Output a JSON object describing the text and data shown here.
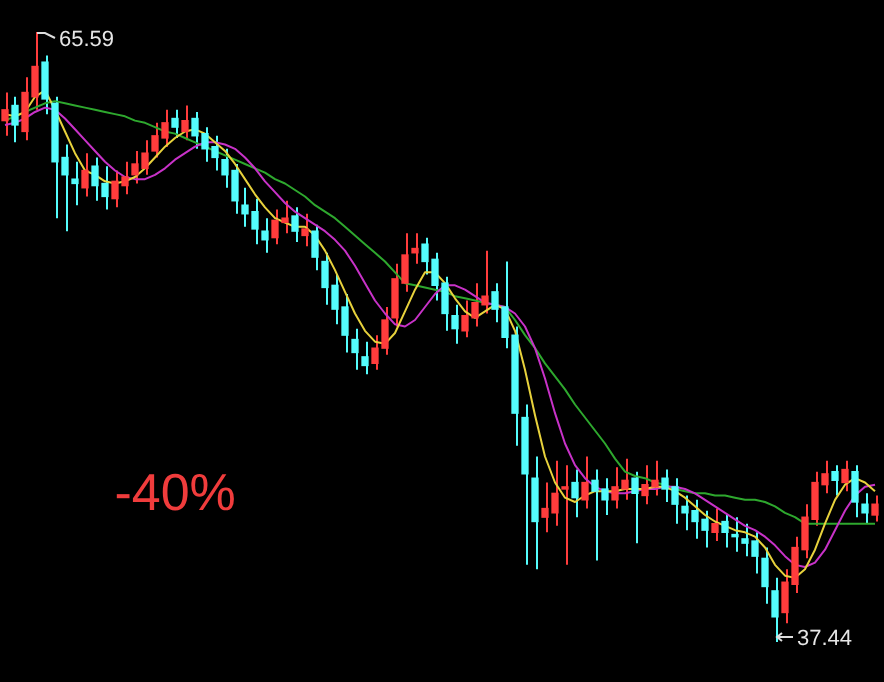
{
  "chart_data": {
    "type": "candlestick",
    "marker": "none",
    "categories": [
      null,
      null,
      null,
      null,
      null,
      null,
      null,
      null,
      null,
      null,
      null,
      null,
      null,
      null,
      null,
      null,
      null,
      null,
      null,
      null,
      null,
      null,
      null,
      null,
      null,
      null,
      null,
      null,
      null,
      null,
      null,
      null,
      null,
      null,
      null,
      null,
      null,
      null,
      null,
      null,
      null,
      null,
      null,
      null,
      null,
      null,
      null,
      null,
      null,
      null,
      null,
      null,
      null,
      null,
      null,
      null,
      null,
      null,
      null,
      null,
      null,
      null,
      null,
      null,
      null,
      null,
      null,
      null,
      null,
      null,
      null,
      null,
      null,
      null,
      null,
      null,
      null,
      null,
      null,
      null,
      null,
      null,
      null,
      null,
      null,
      null,
      null,
      null
    ],
    "ohlc": [
      [
        61.5,
        62.8,
        60.8,
        62.0
      ],
      [
        62.2,
        62.6,
        60.5,
        61.3
      ],
      [
        61.0,
        63.5,
        60.6,
        62.8
      ],
      [
        62.6,
        65.59,
        62.0,
        64.0
      ],
      [
        64.2,
        64.5,
        61.8,
        62.5
      ],
      [
        62.3,
        62.6,
        57.0,
        59.6
      ],
      [
        59.8,
        60.4,
        56.4,
        59.0
      ],
      [
        58.8,
        59.6,
        57.6,
        58.6
      ],
      [
        58.4,
        60.0,
        58.0,
        59.2
      ],
      [
        59.4,
        59.8,
        57.8,
        58.5
      ],
      [
        58.6,
        59.4,
        57.4,
        58.0
      ],
      [
        57.9,
        59.2,
        57.5,
        58.7
      ],
      [
        58.5,
        59.6,
        58.1,
        58.9
      ],
      [
        59.0,
        60.1,
        58.6,
        59.5
      ],
      [
        59.3,
        60.6,
        59.0,
        60.0
      ],
      [
        60.1,
        61.4,
        59.8,
        60.8
      ],
      [
        60.7,
        62.0,
        60.3,
        61.4
      ],
      [
        61.6,
        62.0,
        60.7,
        61.2
      ],
      [
        61.0,
        62.2,
        60.6,
        61.5
      ],
      [
        61.6,
        61.9,
        60.2,
        60.8
      ],
      [
        60.9,
        61.2,
        59.6,
        60.2
      ],
      [
        60.3,
        60.8,
        59.2,
        59.8
      ],
      [
        59.7,
        60.2,
        58.4,
        59.0
      ],
      [
        59.2,
        59.5,
        57.2,
        57.8
      ],
      [
        57.6,
        58.4,
        56.6,
        57.2
      ],
      [
        57.3,
        57.9,
        55.8,
        56.5
      ],
      [
        56.4,
        57.0,
        55.4,
        56.0
      ],
      [
        56.1,
        57.4,
        55.8,
        56.9
      ],
      [
        56.8,
        57.8,
        56.3,
        57.0
      ],
      [
        57.1,
        57.5,
        55.9,
        56.4
      ],
      [
        56.2,
        57.2,
        55.7,
        56.5
      ],
      [
        56.4,
        56.7,
        54.6,
        55.2
      ],
      [
        55.0,
        55.4,
        53.0,
        53.8
      ],
      [
        53.9,
        54.4,
        52.1,
        52.8
      ],
      [
        52.9,
        53.5,
        50.8,
        51.6
      ],
      [
        51.4,
        51.9,
        50.0,
        50.8
      ],
      [
        50.6,
        51.3,
        49.8,
        50.2
      ],
      [
        50.3,
        51.6,
        50.0,
        51.0
      ],
      [
        51.0,
        52.9,
        50.7,
        52.3
      ],
      [
        52.4,
        54.9,
        52.0,
        54.2
      ],
      [
        54.0,
        56.3,
        53.6,
        55.3
      ],
      [
        55.4,
        56.3,
        54.9,
        55.6
      ],
      [
        55.8,
        56.1,
        54.4,
        55.0
      ],
      [
        55.1,
        55.4,
        53.2,
        53.9
      ],
      [
        54.0,
        54.3,
        51.8,
        52.6
      ],
      [
        52.5,
        53.0,
        51.2,
        51.9
      ],
      [
        51.8,
        53.2,
        51.5,
        52.5
      ],
      [
        52.4,
        54.0,
        52.0,
        53.1
      ],
      [
        53.0,
        55.5,
        52.6,
        53.4
      ],
      [
        53.6,
        54.0,
        52.2,
        52.8
      ],
      [
        52.9,
        55.0,
        51.0,
        51.5
      ],
      [
        51.6,
        52.0,
        46.5,
        48.0
      ],
      [
        47.8,
        48.4,
        41.0,
        45.2
      ],
      [
        45.0,
        46.0,
        40.8,
        43.0
      ],
      [
        43.2,
        44.8,
        42.5,
        43.6
      ],
      [
        43.4,
        45.8,
        42.8,
        44.3
      ],
      [
        44.5,
        45.6,
        41.0,
        44.6
      ],
      [
        44.8,
        45.4,
        43.2,
        44.1
      ],
      [
        44.0,
        46.0,
        43.6,
        44.8
      ],
      [
        44.9,
        45.4,
        41.2,
        44.4
      ],
      [
        44.5,
        45.0,
        43.3,
        44.0
      ],
      [
        44.0,
        45.5,
        43.6,
        44.6
      ],
      [
        44.5,
        45.9,
        44.0,
        44.9
      ],
      [
        45.0,
        45.3,
        42.0,
        44.3
      ],
      [
        44.2,
        45.6,
        43.8,
        44.7
      ],
      [
        44.6,
        45.8,
        44.2,
        44.9
      ],
      [
        45.0,
        45.4,
        43.9,
        44.5
      ],
      [
        44.6,
        45.0,
        42.9,
        43.8
      ],
      [
        43.7,
        44.2,
        42.6,
        43.4
      ],
      [
        43.5,
        44.0,
        42.2,
        43.0
      ],
      [
        43.1,
        43.5,
        41.8,
        42.6
      ],
      [
        42.5,
        43.6,
        42.1,
        42.9
      ],
      [
        43.0,
        43.3,
        41.8,
        42.5
      ],
      [
        42.4,
        43.2,
        41.6,
        42.3
      ],
      [
        42.2,
        42.9,
        41.4,
        42.0
      ],
      [
        42.1,
        42.5,
        40.6,
        41.4
      ],
      [
        41.3,
        41.8,
        39.2,
        40.0
      ],
      [
        39.8,
        40.4,
        37.44,
        38.6
      ],
      [
        38.8,
        40.8,
        38.3,
        40.2
      ],
      [
        40.1,
        42.3,
        39.7,
        41.8
      ],
      [
        41.7,
        43.8,
        41.3,
        43.2
      ],
      [
        43.1,
        45.3,
        42.8,
        44.8
      ],
      [
        44.7,
        45.8,
        44.3,
        45.2
      ],
      [
        45.3,
        45.6,
        44.2,
        44.9
      ],
      [
        44.8,
        45.8,
        44.4,
        45.4
      ],
      [
        45.3,
        45.6,
        43.2,
        43.9
      ],
      [
        43.8,
        44.3,
        42.9,
        43.4
      ],
      [
        43.3,
        44.2,
        43.0,
        43.8
      ]
    ],
    "colors": [
      "#ff3c3c",
      "#54fcfc",
      "#ff3c3c",
      "#ff3c3c",
      "#54fcfc",
      "#54fcfc",
      "#54fcfc",
      "#54fcfc",
      "#ff3c3c",
      "#54fcfc",
      "#54fcfc",
      "#ff3c3c",
      "#ff3c3c",
      "#ff3c3c",
      "#ff3c3c",
      "#ff3c3c",
      "#ff3c3c",
      "#54fcfc",
      "#ff3c3c",
      "#54fcfc",
      "#54fcfc",
      "#54fcfc",
      "#54fcfc",
      "#54fcfc",
      "#54fcfc",
      "#54fcfc",
      "#54fcfc",
      "#ff3c3c",
      "#ff3c3c",
      "#54fcfc",
      "#ff3c3c",
      "#54fcfc",
      "#54fcfc",
      "#54fcfc",
      "#54fcfc",
      "#54fcfc",
      "#54fcfc",
      "#ff3c3c",
      "#ff3c3c",
      "#ff3c3c",
      "#ff3c3c",
      "#ff3c3c",
      "#54fcfc",
      "#54fcfc",
      "#54fcfc",
      "#54fcfc",
      "#ff3c3c",
      "#ff3c3c",
      "#ff3c3c",
      "#54fcfc",
      "#54fcfc",
      "#54fcfc",
      "#54fcfc",
      "#54fcfc",
      "#ff3c3c",
      "#ff3c3c",
      "#ff3c3c",
      "#54fcfc",
      "#ff3c3c",
      "#54fcfc",
      "#54fcfc",
      "#ff3c3c",
      "#ff3c3c",
      "#54fcfc",
      "#ff3c3c",
      "#ff3c3c",
      "#54fcfc",
      "#54fcfc",
      "#54fcfc",
      "#54fcfc",
      "#54fcfc",
      "#ff3c3c",
      "#54fcfc",
      "#54fcfc",
      "#54fcfc",
      "#54fcfc",
      "#54fcfc",
      "#54fcfc",
      "#ff3c3c",
      "#ff3c3c",
      "#ff3c3c",
      "#ff3c3c",
      "#ff3c3c",
      "#54fcfc",
      "#ff3c3c",
      "#54fcfc",
      "#54fcfc",
      "#ff3c3c"
    ],
    "series": [
      {
        "type": "line",
        "color": "#e8d23c",
        "values": [
          61.8,
          61.7,
          61.9,
          62.6,
          62.9,
          62.0,
          61.0,
          60.0,
          59.2,
          59.0,
          58.7,
          58.6,
          58.7,
          58.9,
          59.3,
          59.8,
          60.3,
          60.7,
          61.0,
          61.1,
          60.9,
          60.5,
          60.1,
          59.5,
          58.8,
          58.1,
          57.5,
          57.0,
          56.8,
          56.6,
          56.6,
          56.2,
          55.5,
          54.6,
          53.6,
          52.6,
          51.8,
          51.3,
          51.2,
          51.7,
          52.7,
          53.7,
          54.5,
          54.5,
          54.0,
          53.3,
          52.7,
          52.4,
          52.7,
          53.0,
          52.8,
          51.8,
          50.0,
          47.9,
          46.0,
          44.8,
          44.1,
          43.9,
          44.2,
          44.4,
          44.4,
          44.4,
          44.5,
          44.5,
          44.5,
          44.6,
          44.6,
          44.4,
          44.1,
          43.7,
          43.3,
          43.0,
          42.8,
          42.6,
          42.5,
          42.3,
          41.8,
          41.0,
          40.5,
          40.4,
          40.8,
          41.7,
          42.9,
          44.0,
          44.7,
          45.0,
          44.8,
          44.4
        ]
      },
      {
        "type": "line",
        "color": "#c832c8",
        "values": [
          61.3,
          61.4,
          61.6,
          61.9,
          62.1,
          62.0,
          61.6,
          61.1,
          60.6,
          60.1,
          59.6,
          59.2,
          58.9,
          58.8,
          58.8,
          59.0,
          59.3,
          59.7,
          60.0,
          60.3,
          60.5,
          60.5,
          60.4,
          60.2,
          59.8,
          59.3,
          58.7,
          58.2,
          57.7,
          57.3,
          57.0,
          56.7,
          56.4,
          56.0,
          55.5,
          54.8,
          54.0,
          53.2,
          52.6,
          52.1,
          52.0,
          52.3,
          52.9,
          53.5,
          53.9,
          53.9,
          53.7,
          53.4,
          53.1,
          53.0,
          52.9,
          52.6,
          52.0,
          51.0,
          49.6,
          48.0,
          46.6,
          45.6,
          45.0,
          44.6,
          44.4,
          44.3,
          44.3,
          44.4,
          44.5,
          44.5,
          44.6,
          44.6,
          44.5,
          44.3,
          44.0,
          43.7,
          43.4,
          43.1,
          42.8,
          42.6,
          42.3,
          41.9,
          41.4,
          41.0,
          40.9,
          41.1,
          41.7,
          42.6,
          43.5,
          44.2,
          44.6,
          44.7
        ]
      },
      {
        "type": "line",
        "color": "#2ea82e",
        "values": [
          61.5,
          61.7,
          61.9,
          62.1,
          62.3,
          62.4,
          62.3,
          62.2,
          62.1,
          62.0,
          61.9,
          61.8,
          61.7,
          61.5,
          61.4,
          61.2,
          61.0,
          60.9,
          60.7,
          60.5,
          60.3,
          60.1,
          59.9,
          59.7,
          59.5,
          59.3,
          59.1,
          58.8,
          58.6,
          58.3,
          58.0,
          57.6,
          57.3,
          57.0,
          56.6,
          56.2,
          55.8,
          55.4,
          55.0,
          54.5,
          54.0,
          53.9,
          53.8,
          53.7,
          53.6,
          53.4,
          53.3,
          53.2,
          53.1,
          53.0,
          52.9,
          52.3,
          51.6,
          51.0,
          50.3,
          49.7,
          49.1,
          48.4,
          47.8,
          47.2,
          46.6,
          45.9,
          45.3,
          45.1,
          45.0,
          44.8,
          44.7,
          44.5,
          44.4,
          44.3,
          44.3,
          44.2,
          44.2,
          44.1,
          44.0,
          44.0,
          43.9,
          43.7,
          43.4,
          43.2,
          42.9,
          42.9,
          42.9,
          42.9,
          42.9,
          42.9,
          42.9,
          42.9
        ]
      }
    ],
    "annotations": [
      "65.59",
      "37.44",
      "-40%"
    ]
  }
}
